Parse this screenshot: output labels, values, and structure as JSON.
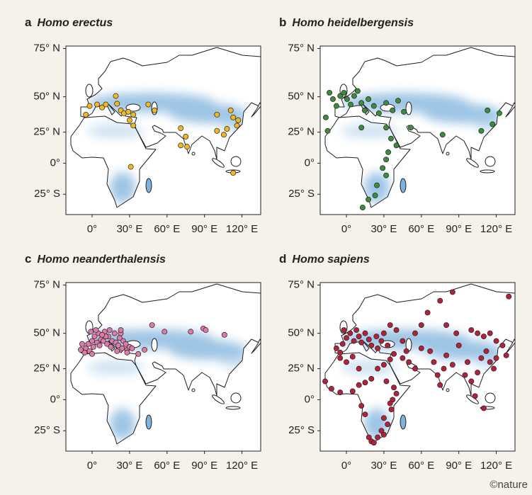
{
  "panels": [
    {
      "letter": "a",
      "title": "Homo erectus",
      "color": "#f2b823",
      "lon": [
        -5,
        -2,
        4,
        8,
        11,
        19,
        20,
        23,
        25.5,
        29,
        33,
        30,
        33,
        45,
        50,
        71,
        75,
        71,
        76,
        100,
        111,
        113,
        117,
        100,
        105.5,
        108,
        116,
        113,
        31
      ],
      "lat": [
        38,
        44,
        45,
        43,
        45,
        50.5,
        45.5,
        41,
        39,
        40,
        38,
        34,
        30,
        45,
        41,
        28,
        21.5,
        14.5,
        13.5,
        38,
        41,
        36,
        34,
        26,
        23,
        27.5,
        30,
        -8,
        -3
      ]
    },
    {
      "letter": "b",
      "title": "Homo heidelbergensis",
      "color": "#3d8b3d",
      "lon": [
        -13.6,
        -10.8,
        -8,
        -5,
        -2,
        0.5,
        3.4,
        6.2,
        9,
        12,
        14.7,
        17.6,
        22,
        26,
        31.8,
        37,
        41.4,
        46,
        31.8,
        35.7,
        40,
        33.5,
        31.8,
        29,
        31.8,
        24.4,
        23,
        17.6,
        13,
        77,
        113,
        122.5,
        117,
        108,
        -16.5,
        -15,
        12,
        51.6
      ],
      "lat": [
        52.5,
        48.5,
        44,
        50.5,
        52.5,
        48.5,
        45,
        50.5,
        53.5,
        46,
        41,
        48.5,
        44,
        39,
        46,
        41,
        47.5,
        40,
        28.5,
        20,
        14.5,
        9,
        3,
        -4,
        -10,
        -18,
        -26,
        -29,
        -35,
        23,
        41,
        39,
        31,
        26,
        36,
        26,
        28.5,
        28.5
      ]
    },
    {
      "letter": "c",
      "title": "Homo neanderthalensis",
      "color": "#e07aa8",
      "lon": [
        -8,
        -5,
        -2,
        -3,
        0,
        2,
        4,
        5,
        7,
        9,
        10,
        12,
        13,
        15,
        16,
        18,
        19,
        21,
        22,
        24,
        25,
        27,
        -1,
        3,
        14,
        28,
        30,
        32,
        20,
        6,
        -6,
        11,
        23,
        -9,
        1,
        8,
        48,
        58,
        79,
        89,
        91,
        106,
        42,
        28,
        37,
        23,
        0
      ],
      "lat": [
        43,
        40,
        38,
        43,
        45,
        48,
        44,
        50,
        46,
        45,
        51,
        43,
        48,
        41,
        45,
        50,
        44,
        42,
        47,
        40,
        45,
        43,
        51,
        52,
        52,
        39,
        41,
        40,
        38,
        42,
        37,
        48,
        50,
        39,
        41,
        49,
        55,
        51,
        51,
        53,
        52,
        49,
        39,
        37,
        36,
        52,
        36
      ]
    },
    {
      "letter": "d",
      "title": "Homo sapiens",
      "color": "#b3213d",
      "lon": [
        -8,
        -3,
        0,
        3,
        6,
        10,
        12,
        15,
        18,
        20,
        24,
        28,
        30,
        35,
        40,
        25,
        -5,
        -2,
        8,
        33,
        35,
        38,
        45,
        50,
        55,
        48,
        -17,
        -12,
        -5,
        5,
        10,
        15,
        20,
        30,
        32,
        38,
        40,
        37,
        35,
        36,
        30,
        33,
        28,
        25,
        20,
        18,
        22,
        30,
        12,
        15,
        0,
        5,
        -5,
        25,
        10,
        60,
        67,
        70,
        73,
        75,
        78,
        80,
        85,
        88,
        80,
        100,
        105,
        110,
        115,
        120,
        125,
        112,
        108,
        115,
        118,
        105,
        100,
        95,
        103,
        110,
        60,
        65,
        75,
        85,
        130,
        90,
        97,
        120,
        128,
        45,
        55
      ],
      "lat": [
        40,
        43,
        47,
        50,
        45,
        48,
        44,
        50,
        46,
        42,
        48,
        45,
        50,
        55,
        52,
        40,
        37,
        52,
        52,
        42,
        32,
        36,
        33,
        30,
        25,
        38,
        15,
        9,
        6,
        7,
        12,
        14,
        17,
        28,
        15,
        10,
        5,
        0,
        -3,
        -8,
        -15,
        -20,
        -25,
        -30,
        -33,
        -30,
        -34,
        -28,
        -5,
        -12,
        30,
        34,
        33,
        25,
        25,
        40,
        38,
        30,
        20,
        12,
        25,
        35,
        28,
        50,
        55,
        52,
        50,
        48,
        50,
        45,
        42,
        38,
        33,
        30,
        25,
        22,
        15,
        20,
        3,
        -7,
        55,
        62,
        68,
        72,
        70,
        42,
        30,
        33,
        35,
        45,
        50
      ]
    }
  ],
  "axes": {
    "xlim": [
      -21,
      135
    ],
    "ylim": [
      -40,
      76
    ],
    "xticks": [
      {
        "value": 0,
        "label": "0°"
      },
      {
        "value": 30,
        "label": "30° E"
      },
      {
        "value": 60,
        "label": "60° E"
      },
      {
        "value": 90,
        "label": "90° E"
      },
      {
        "value": 120,
        "label": "120° E"
      }
    ],
    "yticks": [
      {
        "value": 75,
        "label": "75° N"
      },
      {
        "value": 50,
        "label": "50° N"
      },
      {
        "value": 25,
        "label": "25° N"
      },
      {
        "value": 0,
        "label": "0°"
      },
      {
        "value": -25,
        "label": "25° S"
      }
    ]
  },
  "credit": "©nature"
}
